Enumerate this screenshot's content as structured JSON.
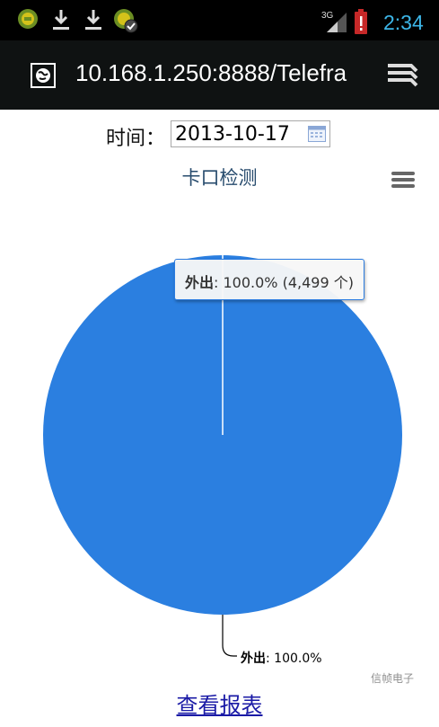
{
  "status_bar": {
    "network": "3G",
    "time": "2:34",
    "icons": [
      "android-app-icon",
      "download-icon",
      "download-icon",
      "android-app-check-icon",
      "signal-icon",
      "battery-alert-icon"
    ]
  },
  "browser": {
    "url": "10.168.1.250:8888/Telefra",
    "icons": [
      "globe-icon",
      "tabs-icon"
    ]
  },
  "form": {
    "date_label": "时间：",
    "date_value": "2013-10-17"
  },
  "chart_data": {
    "type": "pie",
    "title": "卡口检测",
    "categories": [
      "外出"
    ],
    "values": [
      100.0
    ],
    "counts": [
      4499
    ],
    "unit": "个",
    "colors": [
      "#2b7fe0"
    ],
    "data_labels": [
      {
        "name": "外出",
        "value_text": ": 100.0%"
      }
    ],
    "tooltip": {
      "name": "外出",
      "value_text": ": 100.0% (4,499 个)"
    },
    "credits": "信帧电子"
  },
  "footer": {
    "report_link": "查看报表"
  }
}
